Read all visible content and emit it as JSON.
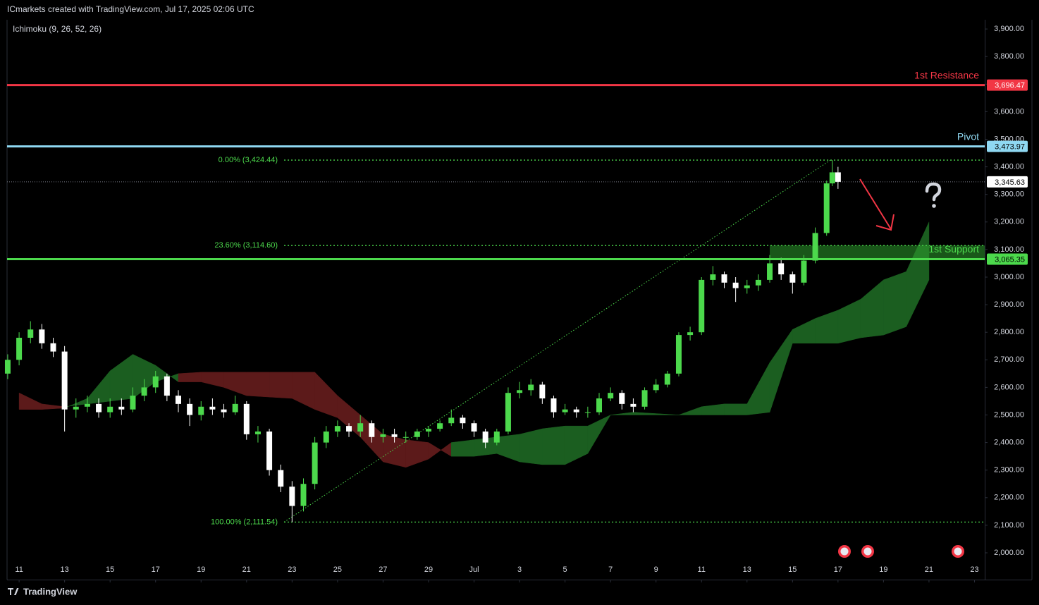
{
  "chart_data": {
    "type": "candlestick",
    "title": "ICmarkets created with TradingView.com, Jul 17, 2025 02:06 UTC",
    "indicator": "Ichimoku (9, 26, 52, 26)",
    "brand": "TradingView",
    "up_color": "#4cd94c",
    "down_color": "#ffffff",
    "x": [
      -0.5,
      0,
      0.5,
      1,
      1.5,
      2,
      2.5,
      3,
      3.5,
      4,
      4.5,
      5,
      5.5,
      6,
      6.5,
      7,
      7.5,
      8,
      8.5,
      9,
      9.5,
      10,
      10.5,
      11,
      11.5,
      12,
      12.5,
      13,
      13.5,
      14,
      14.5,
      15,
      15.5,
      16,
      16.5,
      17,
      17.5,
      18,
      18.5,
      19,
      19.5,
      20,
      20.5,
      21,
      21.5,
      22,
      22.5,
      23,
      23.5,
      24,
      24.5,
      25,
      25.5,
      26,
      26.5,
      27,
      27.5,
      28,
      28.5,
      29,
      29.5,
      30,
      30.5,
      31,
      31.5,
      32,
      32.5,
      33,
      33.5,
      34,
      34.5,
      35,
      35.5,
      35.75,
      36
    ],
    "ohlc": [
      [
        2650,
        2720,
        2630,
        2700
      ],
      [
        2700,
        2800,
        2680,
        2780
      ],
      [
        2780,
        2840,
        2760,
        2810
      ],
      [
        2810,
        2830,
        2740,
        2760
      ],
      [
        2760,
        2780,
        2710,
        2730
      ],
      [
        2730,
        2750,
        2440,
        2520
      ],
      [
        2520,
        2560,
        2490,
        2530
      ],
      [
        2530,
        2570,
        2510,
        2540
      ],
      [
        2540,
        2560,
        2490,
        2510
      ],
      [
        2510,
        2560,
        2490,
        2530
      ],
      [
        2530,
        2560,
        2500,
        2520
      ],
      [
        2520,
        2600,
        2510,
        2570
      ],
      [
        2570,
        2630,
        2550,
        2600
      ],
      [
        2600,
        2660,
        2580,
        2640
      ],
      [
        2640,
        2650,
        2550,
        2570
      ],
      [
        2570,
        2590,
        2510,
        2540
      ],
      [
        2540,
        2560,
        2460,
        2500
      ],
      [
        2500,
        2550,
        2480,
        2530
      ],
      [
        2530,
        2560,
        2500,
        2520
      ],
      [
        2520,
        2540,
        2490,
        2510
      ],
      [
        2510,
        2570,
        2500,
        2540
      ],
      [
        2540,
        2550,
        2410,
        2430
      ],
      [
        2430,
        2460,
        2400,
        2440
      ],
      [
        2440,
        2450,
        2280,
        2300
      ],
      [
        2300,
        2320,
        2220,
        2240
      ],
      [
        2240,
        2260,
        2111.54,
        2170
      ],
      [
        2170,
        2270,
        2150,
        2250
      ],
      [
        2250,
        2420,
        2230,
        2400
      ],
      [
        2400,
        2460,
        2380,
        2440
      ],
      [
        2440,
        2480,
        2420,
        2460
      ],
      [
        2460,
        2470,
        2420,
        2440
      ],
      [
        2440,
        2500,
        2420,
        2470
      ],
      [
        2470,
        2480,
        2400,
        2420
      ],
      [
        2420,
        2450,
        2400,
        2430
      ],
      [
        2430,
        2450,
        2400,
        2420
      ],
      [
        2420,
        2440,
        2400,
        2420
      ],
      [
        2420,
        2450,
        2410,
        2440
      ],
      [
        2440,
        2460,
        2420,
        2450
      ],
      [
        2450,
        2480,
        2440,
        2470
      ],
      [
        2470,
        2520,
        2460,
        2490
      ],
      [
        2490,
        2500,
        2450,
        2470
      ],
      [
        2470,
        2480,
        2420,
        2440
      ],
      [
        2440,
        2450,
        2380,
        2400
      ],
      [
        2400,
        2450,
        2390,
        2440
      ],
      [
        2440,
        2600,
        2430,
        2580
      ],
      [
        2580,
        2620,
        2560,
        2590
      ],
      [
        2590,
        2630,
        2570,
        2610
      ],
      [
        2610,
        2620,
        2540,
        2560
      ],
      [
        2560,
        2570,
        2490,
        2510
      ],
      [
        2510,
        2540,
        2500,
        2520
      ],
      [
        2520,
        2530,
        2490,
        2510
      ],
      [
        2510,
        2530,
        2490,
        2510
      ],
      [
        2510,
        2580,
        2500,
        2560
      ],
      [
        2560,
        2600,
        2550,
        2580
      ],
      [
        2580,
        2590,
        2520,
        2540
      ],
      [
        2540,
        2560,
        2510,
        2530
      ],
      [
        2530,
        2600,
        2520,
        2590
      ],
      [
        2590,
        2630,
        2580,
        2610
      ],
      [
        2610,
        2660,
        2600,
        2650
      ],
      [
        2650,
        2800,
        2640,
        2790
      ],
      [
        2790,
        2820,
        2770,
        2800
      ],
      [
        2800,
        3000,
        2790,
        2990
      ],
      [
        2990,
        3040,
        2970,
        3010
      ],
      [
        3010,
        3020,
        2960,
        2980
      ],
      [
        2980,
        3000,
        2910,
        2960
      ],
      [
        2960,
        2990,
        2940,
        2970
      ],
      [
        2970,
        3010,
        2950,
        2990
      ],
      [
        2990,
        3080,
        2980,
        3050
      ],
      [
        3050,
        3070,
        2990,
        3010
      ],
      [
        3010,
        3020,
        2940,
        2980
      ],
      [
        2980,
        3080,
        2970,
        3060
      ],
      [
        3060,
        3180,
        3050,
        3160
      ],
      [
        3160,
        3350,
        3150,
        3340
      ],
      [
        3340,
        3424.44,
        3330,
        3380
      ],
      [
        3380,
        3400,
        3320,
        3345.63
      ]
    ],
    "cloud": {
      "up_color": "#1b5e20",
      "down_color": "#5c1a1a",
      "x": [
        0,
        1,
        2,
        3,
        4,
        5,
        6,
        7,
        8,
        9,
        10,
        11,
        12,
        13,
        14,
        15,
        16,
        17,
        18,
        19,
        20,
        21,
        22,
        23,
        24,
        25,
        26,
        27,
        28,
        29,
        30,
        31,
        32,
        33,
        34,
        35,
        36,
        37,
        38,
        39,
        40
      ],
      "span_a": [
        2520,
        2520,
        2525,
        2560,
        2660,
        2720,
        2680,
        2620,
        2620,
        2600,
        2570,
        2565,
        2560,
        2520,
        2490,
        2420,
        2330,
        2310,
        2340,
        2400,
        2410,
        2420,
        2430,
        2450,
        2460,
        2460,
        2500,
        2510,
        2505,
        2500,
        2530,
        2540,
        2540,
        2690,
        2810,
        2850,
        2880,
        2920,
        2990,
        3020,
        3200
      ],
      "span_b": [
        2580,
        2540,
        2530,
        2540,
        2550,
        2560,
        2620,
        2650,
        2655,
        2655,
        2655,
        2655,
        2655,
        2655,
        2570,
        2500,
        2430,
        2410,
        2400,
        2350,
        2350,
        2360,
        2330,
        2320,
        2320,
        2360,
        2500,
        2500,
        2500,
        2500,
        2500,
        2500,
        2500,
        2510,
        2760,
        2760,
        2760,
        2780,
        2790,
        2820,
        2990
      ]
    },
    "levels": [
      {
        "name": "1st Resistance",
        "value": 3696.47,
        "value_label": "3,696.47",
        "color": "#f23645",
        "text_color": "#ffffff"
      },
      {
        "name": "Pivot",
        "value": 3473.97,
        "value_label": "3,473.97",
        "color": "#8fd8f2",
        "text_color": "#000000"
      },
      {
        "name": "1st Support",
        "value": 3065.35,
        "value_label": "3,065.35",
        "color": "#4cd94c",
        "text_color": "#000000"
      }
    ],
    "fib": {
      "color": "#4cd94c",
      "x": [
        11.65,
        35.67
      ],
      "levels": [
        {
          "value": 3424.44,
          "label": "0.00% (3,424.44)"
        },
        {
          "value": 3114.6,
          "label": "23.60% (3,114.60)"
        },
        {
          "value": 2111.54,
          "label": "100.00% (2,111.54)"
        }
      ]
    },
    "support_zone": {
      "x_start": 33,
      "color": "#2e9e2e"
    },
    "last_price": {
      "value": 3345.63,
      "label": "3,345.63"
    },
    "xlim": [
      -0.53,
      42.45
    ],
    "ylim": [
      1902.8,
      3933.5
    ],
    "xticks": [
      {
        "value": 0,
        "label": "11"
      },
      {
        "value": 2,
        "label": "13"
      },
      {
        "value": 4,
        "label": "15"
      },
      {
        "value": 6,
        "label": "17"
      },
      {
        "value": 8,
        "label": "19"
      },
      {
        "value": 10,
        "label": "21"
      },
      {
        "value": 12,
        "label": "23"
      },
      {
        "value": 14,
        "label": "25"
      },
      {
        "value": 16,
        "label": "27"
      },
      {
        "value": 18,
        "label": "29"
      },
      {
        "value": 20,
        "label": "Jul"
      },
      {
        "value": 22,
        "label": "3"
      },
      {
        "value": 24,
        "label": "5"
      },
      {
        "value": 26,
        "label": "7"
      },
      {
        "value": 28,
        "label": "9"
      },
      {
        "value": 30,
        "label": "11"
      },
      {
        "value": 32,
        "label": "13"
      },
      {
        "value": 34,
        "label": "15"
      },
      {
        "value": 36,
        "label": "17"
      },
      {
        "value": 38,
        "label": "19"
      },
      {
        "value": 40,
        "label": "21"
      },
      {
        "value": 42,
        "label": "23"
      }
    ],
    "yticks": [
      {
        "value": 2000,
        "label": "2,000.00"
      },
      {
        "value": 2100,
        "label": "2,100.00"
      },
      {
        "value": 2200,
        "label": "2,200.00"
      },
      {
        "value": 2300,
        "label": "2,300.00"
      },
      {
        "value": 2400,
        "label": "2,400.00"
      },
      {
        "value": 2500,
        "label": "2,500.00"
      },
      {
        "value": 2600,
        "label": "2,600.00"
      },
      {
        "value": 2700,
        "label": "2,700.00"
      },
      {
        "value": 2800,
        "label": "2,800.00"
      },
      {
        "value": 2900,
        "label": "2,900.00"
      },
      {
        "value": 3000,
        "label": "3,000.00"
      },
      {
        "value": 3100,
        "label": "3,100.00"
      },
      {
        "value": 3200,
        "label": "3,200.00"
      },
      {
        "value": 3300,
        "label": "3,300.00"
      },
      {
        "value": 3400,
        "label": "3,400.00"
      },
      {
        "value": 3500,
        "label": "3,500.00"
      },
      {
        "value": 3600,
        "label": "3,600.00"
      },
      {
        "value": 3700,
        "label": "3,700.00"
      },
      {
        "value": 3800,
        "label": "3,800.00"
      },
      {
        "value": 3900,
        "label": "3,900.00"
      }
    ]
  }
}
